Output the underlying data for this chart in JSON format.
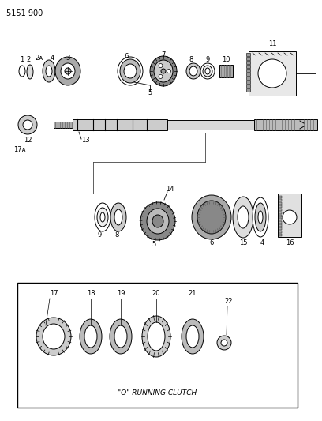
{
  "title_code": "5151 900",
  "bg_color": "#ffffff",
  "line_color": "#000000",
  "box_label": "\"O\" RUNNING CLUTCH",
  "fig_width": 4.08,
  "fig_height": 5.33,
  "dpi": 100
}
